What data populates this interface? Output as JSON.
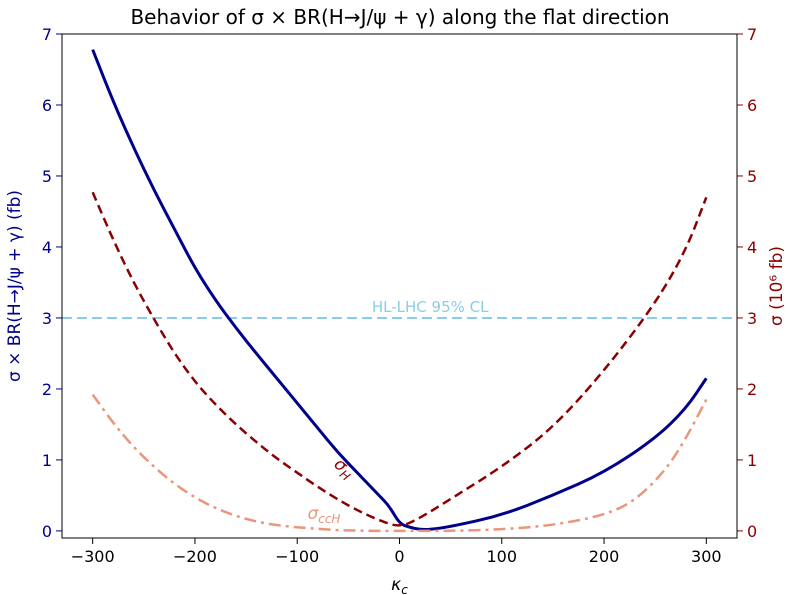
{
  "chart_data": {
    "type": "line",
    "title": "Behavior of σ × BR(H→J/ψ + γ) along the flat direction",
    "xlabel": "κ_c",
    "ylabel_left": "σ × BR(H→J/ψ + γ) (fb)",
    "ylabel_right": "σ (10⁶ fb)",
    "xlim": [
      -330,
      330
    ],
    "ylim_left": [
      -0.1,
      7
    ],
    "ylim_right": [
      -0.1,
      7
    ],
    "x_ticks": [
      -300,
      -200,
      -100,
      0,
      100,
      200,
      300
    ],
    "x_tick_labels": [
      "−300",
      "−200",
      "−100",
      "0",
      "100",
      "200",
      "300"
    ],
    "y_ticks_left": [
      0,
      1,
      2,
      3,
      4,
      5,
      6,
      7
    ],
    "y_ticks_right": [
      0,
      1,
      2,
      3,
      4,
      5,
      6,
      7
    ],
    "grid": false,
    "colors": {
      "left_axis": "#00008b",
      "right_axis": "#8b0000",
      "cl_line": "#87ceeb",
      "sigma_ccH": "#e9967a"
    },
    "reference_line": {
      "y": 3,
      "label": "HL-LHC 95% CL"
    },
    "series": [
      {
        "key": "sigma_br",
        "axis": "left",
        "style": "solid",
        "color": "#00008b",
        "x": [
          -300,
          -280,
          -260,
          -240,
          -220,
          -200,
          -180,
          -160,
          -140,
          -120,
          -100,
          -80,
          -60,
          -40,
          -20,
          -10,
          0,
          10,
          20,
          30,
          50,
          100,
          150,
          200,
          250,
          280,
          300
        ],
        "y": [
          6.78,
          6.05,
          5.4,
          4.8,
          4.25,
          3.7,
          3.25,
          2.86,
          2.5,
          2.15,
          1.8,
          1.45,
          1.1,
          0.8,
          0.5,
          0.35,
          0.1,
          0.05,
          0.02,
          0.02,
          0.06,
          0.22,
          0.5,
          0.82,
          1.3,
          1.72,
          2.15
        ]
      },
      {
        "key": "sigma_H",
        "axis": "right",
        "style": "dashed",
        "color": "#8b0000",
        "label": "σH",
        "x": [
          -300,
          -280,
          -260,
          -240,
          -220,
          -200,
          -180,
          -160,
          -140,
          -120,
          -100,
          -80,
          -60,
          -40,
          -20,
          0,
          20,
          50,
          100,
          150,
          200,
          250,
          280,
          300
        ],
        "y": [
          4.77,
          4.1,
          3.5,
          2.98,
          2.5,
          2.1,
          1.78,
          1.5,
          1.25,
          1.02,
          0.82,
          0.62,
          0.44,
          0.28,
          0.15,
          0.05,
          0.18,
          0.45,
          0.9,
          1.45,
          2.25,
          3.2,
          3.95,
          4.7
        ]
      },
      {
        "key": "sigma_ccH",
        "axis": "right",
        "style": "dashdot",
        "color": "#e9967a",
        "label": "σccH",
        "x": [
          -300,
          -280,
          -260,
          -240,
          -220,
          -200,
          -180,
          -160,
          -140,
          -120,
          -100,
          -80,
          -60,
          -40,
          -20,
          0,
          20,
          50,
          100,
          150,
          200,
          230,
          260,
          280,
          300
        ],
        "y": [
          1.92,
          1.52,
          1.18,
          0.9,
          0.66,
          0.47,
          0.32,
          0.21,
          0.13,
          0.08,
          0.05,
          0.03,
          0.01,
          0.005,
          0.0,
          0.0,
          0.0,
          0.0,
          0.02,
          0.08,
          0.22,
          0.42,
          0.85,
          1.3,
          1.85
        ]
      }
    ]
  }
}
